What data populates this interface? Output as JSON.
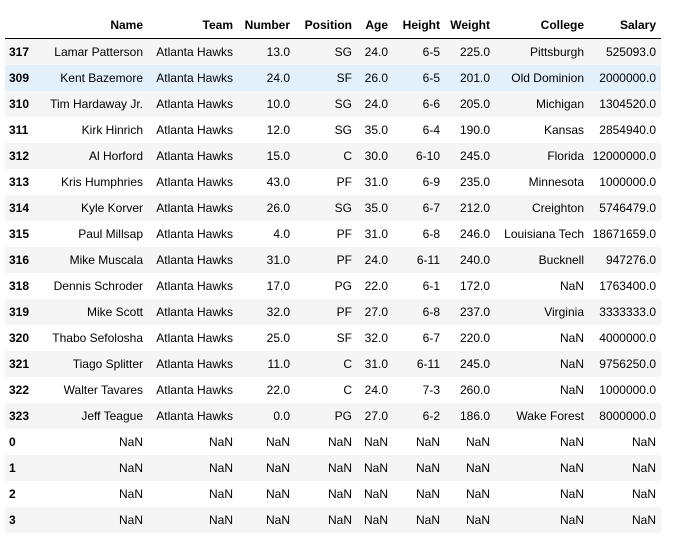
{
  "table": {
    "columns": [
      "",
      "Name",
      "Team",
      "Number",
      "Position",
      "Age",
      "Height",
      "Weight",
      "College",
      "Salary"
    ],
    "highlighted_row_index": 1,
    "highlight_color": "#e1f0fb",
    "stripe_color": "#f5f5f5",
    "rows": [
      [
        "317",
        "Lamar Patterson",
        "Atlanta Hawks",
        "13.0",
        "SG",
        "24.0",
        "6-5",
        "225.0",
        "Pittsburgh",
        "525093.0"
      ],
      [
        "309",
        "Kent Bazemore",
        "Atlanta Hawks",
        "24.0",
        "SF",
        "26.0",
        "6-5",
        "201.0",
        "Old Dominion",
        "2000000.0"
      ],
      [
        "310",
        "Tim Hardaway Jr.",
        "Atlanta Hawks",
        "10.0",
        "SG",
        "24.0",
        "6-6",
        "205.0",
        "Michigan",
        "1304520.0"
      ],
      [
        "311",
        "Kirk Hinrich",
        "Atlanta Hawks",
        "12.0",
        "SG",
        "35.0",
        "6-4",
        "190.0",
        "Kansas",
        "2854940.0"
      ],
      [
        "312",
        "Al Horford",
        "Atlanta Hawks",
        "15.0",
        "C",
        "30.0",
        "6-10",
        "245.0",
        "Florida",
        "12000000.0"
      ],
      [
        "313",
        "Kris Humphries",
        "Atlanta Hawks",
        "43.0",
        "PF",
        "31.0",
        "6-9",
        "235.0",
        "Minnesota",
        "1000000.0"
      ],
      [
        "314",
        "Kyle Korver",
        "Atlanta Hawks",
        "26.0",
        "SG",
        "35.0",
        "6-7",
        "212.0",
        "Creighton",
        "5746479.0"
      ],
      [
        "315",
        "Paul Millsap",
        "Atlanta Hawks",
        "4.0",
        "PF",
        "31.0",
        "6-8",
        "246.0",
        "Louisiana Tech",
        "18671659.0"
      ],
      [
        "316",
        "Mike Muscala",
        "Atlanta Hawks",
        "31.0",
        "PF",
        "24.0",
        "6-11",
        "240.0",
        "Bucknell",
        "947276.0"
      ],
      [
        "318",
        "Dennis Schroder",
        "Atlanta Hawks",
        "17.0",
        "PG",
        "22.0",
        "6-1",
        "172.0",
        "NaN",
        "1763400.0"
      ],
      [
        "319",
        "Mike Scott",
        "Atlanta Hawks",
        "32.0",
        "PF",
        "27.0",
        "6-8",
        "237.0",
        "Virginia",
        "3333333.0"
      ],
      [
        "320",
        "Thabo Sefolosha",
        "Atlanta Hawks",
        "25.0",
        "SF",
        "32.0",
        "6-7",
        "220.0",
        "NaN",
        "4000000.0"
      ],
      [
        "321",
        "Tiago Splitter",
        "Atlanta Hawks",
        "11.0",
        "C",
        "31.0",
        "6-11",
        "245.0",
        "NaN",
        "9756250.0"
      ],
      [
        "322",
        "Walter Tavares",
        "Atlanta Hawks",
        "22.0",
        "C",
        "24.0",
        "7-3",
        "260.0",
        "NaN",
        "1000000.0"
      ],
      [
        "323",
        "Jeff Teague",
        "Atlanta Hawks",
        "0.0",
        "PG",
        "27.0",
        "6-2",
        "186.0",
        "Wake Forest",
        "8000000.0"
      ],
      [
        "0",
        "NaN",
        "NaN",
        "NaN",
        "NaN",
        "NaN",
        "NaN",
        "NaN",
        "NaN",
        "NaN"
      ],
      [
        "1",
        "NaN",
        "NaN",
        "NaN",
        "NaN",
        "NaN",
        "NaN",
        "NaN",
        "NaN",
        "NaN"
      ],
      [
        "2",
        "NaN",
        "NaN",
        "NaN",
        "NaN",
        "NaN",
        "NaN",
        "NaN",
        "NaN",
        "NaN"
      ],
      [
        "3",
        "NaN",
        "NaN",
        "NaN",
        "NaN",
        "NaN",
        "NaN",
        "NaN",
        "NaN",
        "NaN"
      ]
    ]
  }
}
